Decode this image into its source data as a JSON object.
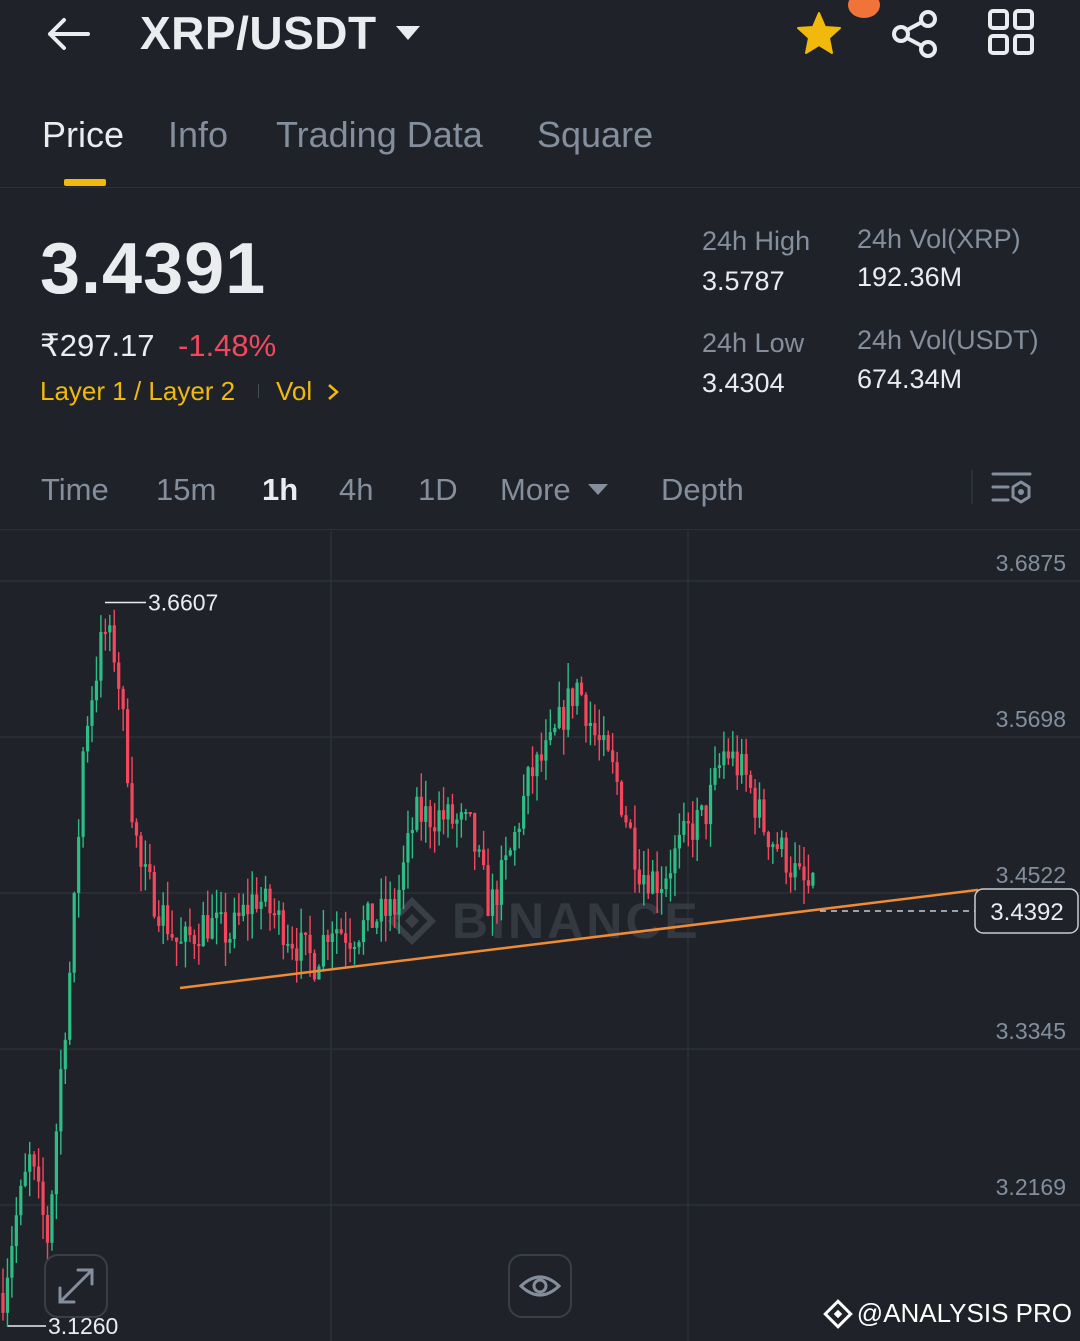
{
  "header": {
    "pair": "XRP/USDT",
    "back_icon": "arrow-left-icon",
    "favorite_icon": "star-icon",
    "share_icon": "share-icon",
    "grid_icon": "grid-icon"
  },
  "tabs": [
    {
      "label": "Price",
      "active": true
    },
    {
      "label": "Info",
      "active": false
    },
    {
      "label": "Trading Data",
      "active": false
    },
    {
      "label": "Square",
      "active": false
    }
  ],
  "ticker": {
    "last_price": "3.4391",
    "fiat_price": "₹297.17",
    "change": "-1.48%",
    "tag_category": "Layer 1 / Layer 2",
    "tag_vol": "Vol",
    "high_label": "24h High",
    "high_value": "3.5787",
    "low_label": "24h Low",
    "low_value": "3.4304",
    "vol_base_label": "24h Vol(XRP)",
    "vol_base_value": "192.36M",
    "vol_quote_label": "24h Vol(USDT)",
    "vol_quote_value": "674.34M"
  },
  "intervals": {
    "items": [
      {
        "label": "Time",
        "active": false
      },
      {
        "label": "15m",
        "active": false
      },
      {
        "label": "1h",
        "active": true
      },
      {
        "label": "4h",
        "active": false
      },
      {
        "label": "1D",
        "active": false
      },
      {
        "label": "More",
        "active": false
      },
      {
        "label": "Depth",
        "active": false
      }
    ],
    "settings_icon": "chart-settings-icon"
  },
  "chart_data": {
    "type": "candlestick",
    "interval": "1h",
    "y_ticks": [
      "3.6875",
      "3.5698",
      "3.4522",
      "3.3345",
      "3.2169"
    ],
    "ylim": [
      3.126,
      3.7
    ],
    "max_label": "3.6607",
    "min_label": "3.1260",
    "current_price": "3.4392",
    "trendline": {
      "from": 3.37,
      "to": 3.444
    },
    "watermark": "BINANCE",
    "colors": {
      "up": "#2ebd85",
      "down": "#f6465d",
      "trendline": "#f08a36",
      "grid": "#2b3139"
    }
  },
  "footer": {
    "expand_icon": "expand-icon",
    "eye_icon": "eye-icon",
    "brand": "@ANALYSIS PRO"
  }
}
